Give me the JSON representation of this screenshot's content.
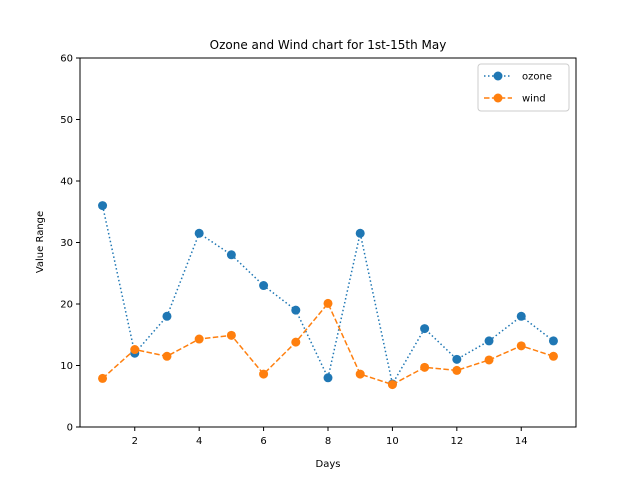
{
  "chart_data": {
    "type": "line",
    "title": "Ozone and Wind chart for 1st-15th May",
    "xlabel": "Days",
    "ylabel": "Value Range",
    "xlim": [
      0.3,
      15.7
    ],
    "ylim": [
      0,
      60
    ],
    "xticks": [
      2,
      4,
      6,
      8,
      10,
      12,
      14
    ],
    "yticks": [
      0,
      10,
      20,
      30,
      40,
      50,
      60
    ],
    "x": [
      1,
      2,
      3,
      4,
      5,
      6,
      7,
      8,
      9,
      10,
      11,
      12,
      13,
      14,
      15
    ],
    "grid": false,
    "legend_position": "upper-right",
    "series": [
      {
        "name": "ozone",
        "color": "#1f77b4",
        "line_style": "dotted",
        "marker": "circle",
        "values": [
          36,
          12,
          18,
          31.5,
          28,
          23,
          19,
          8,
          31.5,
          7,
          16,
          11,
          14,
          18,
          14
        ]
      },
      {
        "name": "wind",
        "color": "#ff7f0e",
        "line_style": "dashed",
        "marker": "circle",
        "values": [
          7.9,
          12.6,
          11.5,
          14.3,
          14.9,
          8.6,
          13.8,
          20.1,
          8.6,
          6.9,
          9.7,
          9.2,
          10.9,
          13.2,
          11.5
        ]
      }
    ]
  }
}
